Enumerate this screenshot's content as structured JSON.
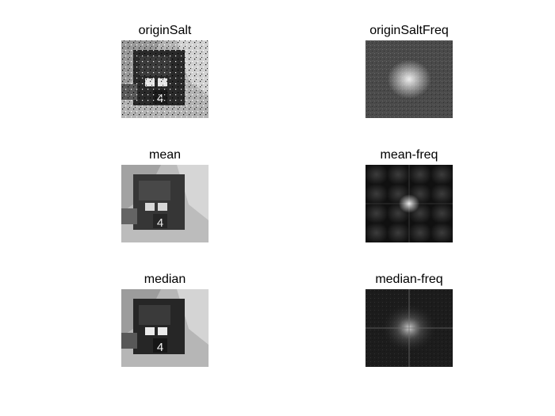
{
  "figure": {
    "panels": [
      {
        "title": "originSalt",
        "kind": "photo-salt"
      },
      {
        "title": "originSaltFreq",
        "kind": "freq-noise"
      },
      {
        "title": "mean",
        "kind": "photo-smooth"
      },
      {
        "title": "mean-freq",
        "kind": "freq-grid"
      },
      {
        "title": "median",
        "kind": "photo-sharp"
      },
      {
        "title": "median-freq",
        "kind": "freq-cross"
      }
    ]
  }
}
